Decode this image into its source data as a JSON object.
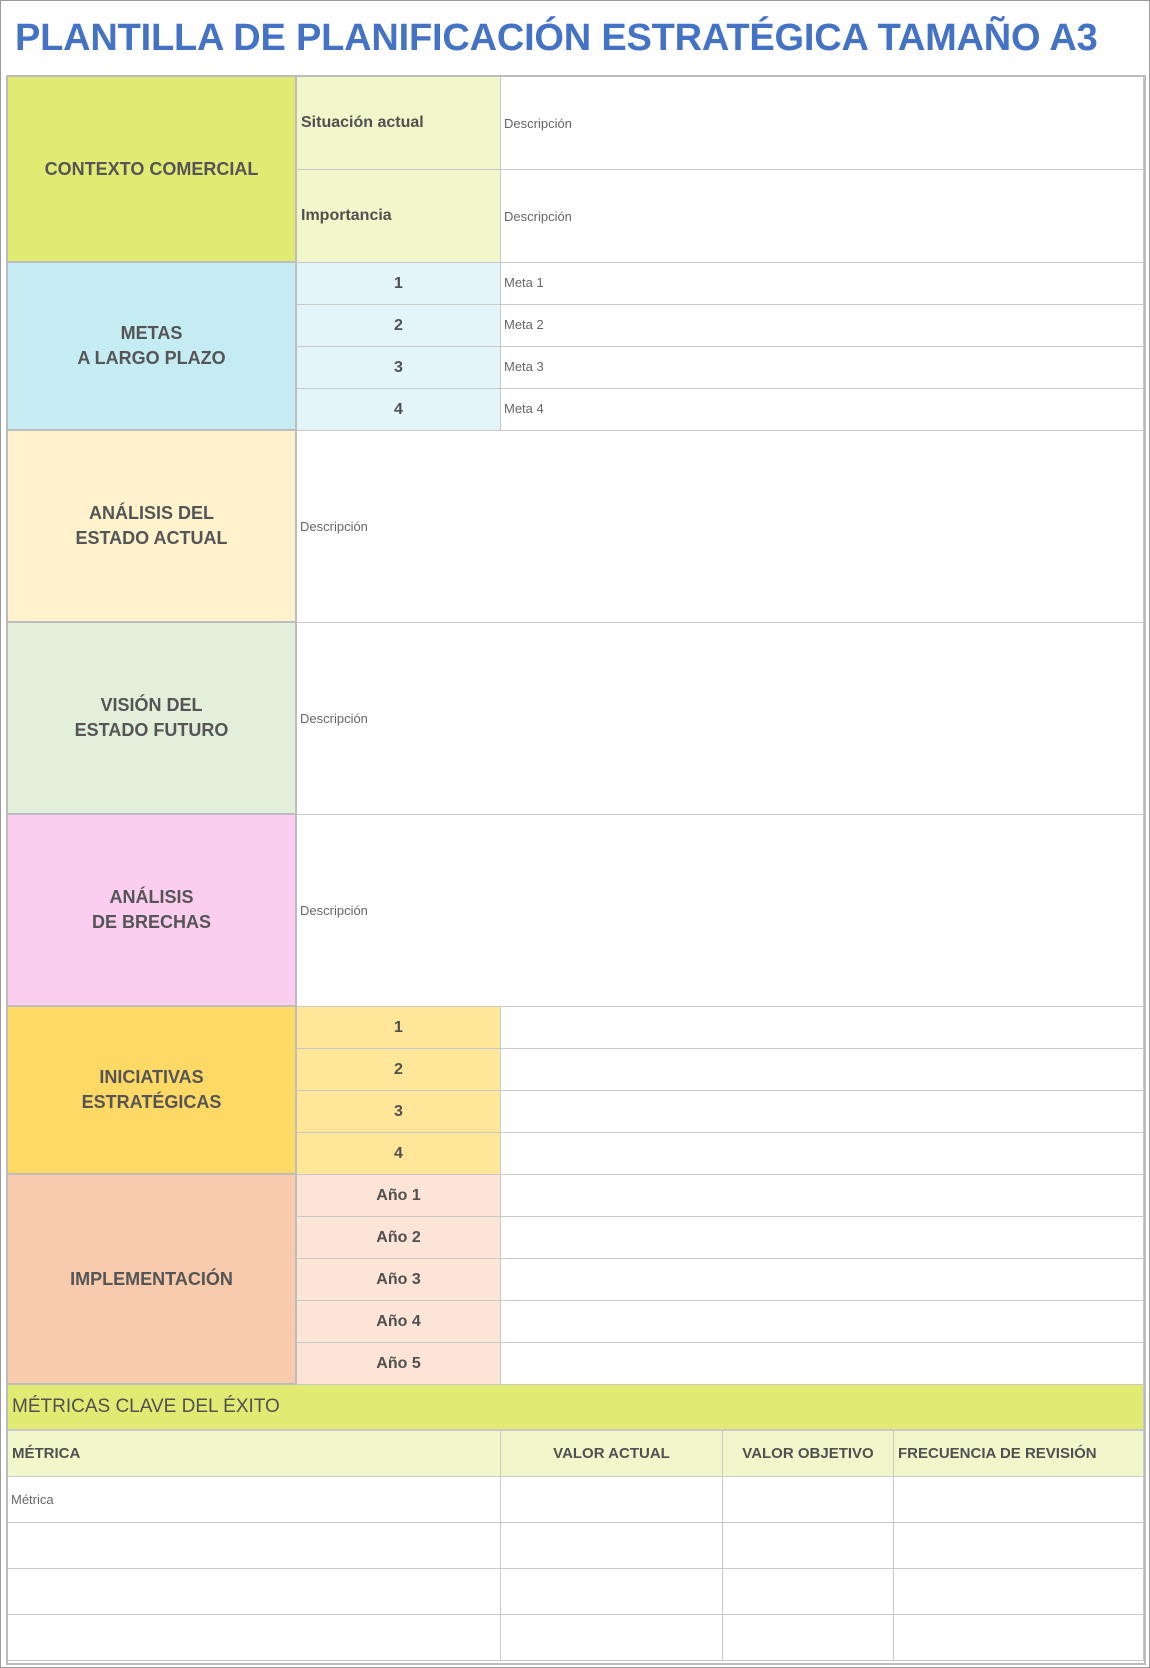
{
  "title": "PLANTILLA DE PLANIFICACIÓN ESTRATÉGICA TAMAÑO A3",
  "colors": {
    "title": "#4472c4",
    "contexto": "#e1eb74",
    "contexto_sub": "#f2f7cb",
    "metas": "#c5ebf3",
    "metas_sub": "#e3f5f9",
    "analisis": "#fff2cc",
    "vision": "#e2efda",
    "brechas": "#fbcdef",
    "iniciativas": "#ffd966",
    "iniciativas_sub": "#ffe699",
    "implementacion": "#f8cbad",
    "implementacion_sub": "#fce4d6"
  },
  "contexto": {
    "label": "CONTEXTO COMERCIAL",
    "rows": [
      {
        "label": "Situación actual",
        "value": "Descripción"
      },
      {
        "label": "Importancia",
        "value": "Descripción"
      }
    ]
  },
  "metas": {
    "label": "METAS\nA LARGO PLAZO",
    "rows": [
      {
        "num": "1",
        "value": "Meta 1"
      },
      {
        "num": "2",
        "value": "Meta 2"
      },
      {
        "num": "3",
        "value": "Meta 3"
      },
      {
        "num": "4",
        "value": "Meta 4"
      }
    ]
  },
  "analisis": {
    "label": "ANÁLISIS DEL\nESTADO ACTUAL",
    "value": "Descripción"
  },
  "vision": {
    "label": "VISIÓN DEL\nESTADO FUTURO",
    "value": "Descripción"
  },
  "brechas": {
    "label": "ANÁLISIS\nDE BRECHAS",
    "value": "Descripción"
  },
  "iniciativas": {
    "label": "INICIATIVAS\nESTRATÉGICAS",
    "rows": [
      "1",
      "2",
      "3",
      "4"
    ]
  },
  "implementacion": {
    "label": "IMPLEMENTACIÓN",
    "rows": [
      "Año 1",
      "Año 2",
      "Año 3",
      "Año 4",
      "Año 5"
    ]
  },
  "metricas": {
    "title": "MÉTRICAS CLAVE DEL ÉXITO",
    "headers": [
      "MÉTRICA",
      "VALOR ACTUAL",
      "VALOR OBJETIVO",
      "FRECUENCIA DE REVISIÓN"
    ],
    "rows": [
      [
        "Métrica",
        "",
        "",
        ""
      ],
      [
        "",
        "",
        "",
        ""
      ],
      [
        "",
        "",
        "",
        ""
      ],
      [
        "",
        "",
        "",
        ""
      ]
    ]
  }
}
